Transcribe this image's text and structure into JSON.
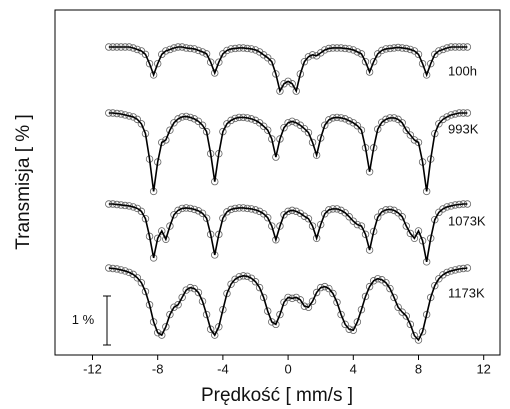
{
  "chart_data": {
    "type": "line",
    "xlabel": "Prędkość [ mm/s ]",
    "ylabel": "Transmisja [ % ]",
    "xlim": [
      -14.3,
      13
    ],
    "xticks": [
      -12,
      -8,
      -4,
      0,
      4,
      8,
      12
    ],
    "scale_bar": {
      "value": 1,
      "label": "1 %"
    },
    "x": [
      -11,
      -10.75,
      -10.5,
      -10.25,
      -10,
      -9.75,
      -9.5,
      -9.25,
      -9,
      -8.75,
      -8.5,
      -8.25,
      -8,
      -7.75,
      -7.5,
      -7.25,
      -7,
      -6.75,
      -6.5,
      -6.25,
      -6,
      -5.75,
      -5.5,
      -5.25,
      -5,
      -4.75,
      -4.5,
      -4.25,
      -4,
      -3.75,
      -3.5,
      -3.25,
      -3,
      -2.75,
      -2.5,
      -2.25,
      -2,
      -1.75,
      -1.5,
      -1.25,
      -1,
      -0.75,
      -0.5,
      -0.25,
      0,
      0.25,
      0.5,
      0.75,
      1,
      1.25,
      1.5,
      1.75,
      2,
      2.25,
      2.5,
      2.75,
      3,
      3.25,
      3.5,
      3.75,
      4,
      4.25,
      4.5,
      4.75,
      5,
      5.25,
      5.5,
      5.75,
      6,
      6.25,
      6.5,
      6.75,
      7,
      7.25,
      7.5,
      7.75,
      8,
      8.25,
      8.5,
      8.75,
      9,
      9.25,
      9.5,
      9.75,
      10,
      10.25,
      10.5,
      10.75,
      11
    ],
    "series": [
      {
        "name": "100h",
        "color": "#000000",
        "values": [
          0,
          0,
          0,
          0,
          0,
          0,
          -0.02,
          -0.05,
          -0.08,
          -0.15,
          -0.34,
          -0.57,
          -0.34,
          -0.15,
          -0.08,
          -0.05,
          -0.02,
          0,
          0,
          -0.02,
          -0.03,
          -0.04,
          -0.07,
          -0.1,
          -0.14,
          -0.31,
          -0.53,
          -0.31,
          -0.14,
          -0.07,
          -0.04,
          -0.03,
          -0.02,
          -0.02,
          -0.03,
          -0.04,
          -0.06,
          -0.1,
          -0.16,
          -0.22,
          -0.3,
          -0.55,
          -0.9,
          -0.75,
          -0.7,
          -0.75,
          -0.9,
          -0.55,
          -0.3,
          -0.2,
          -0.16,
          -0.18,
          -0.12,
          -0.06,
          -0.03,
          -0.02,
          -0.02,
          -0.02,
          -0.03,
          -0.04,
          -0.06,
          -0.1,
          -0.14,
          -0.3,
          -0.51,
          -0.3,
          -0.14,
          -0.07,
          -0.04,
          -0.03,
          -0.02,
          -0.01,
          -0.02,
          -0.03,
          -0.05,
          -0.08,
          -0.15,
          -0.34,
          -0.57,
          -0.34,
          -0.15,
          -0.08,
          -0.05,
          -0.02,
          0,
          0,
          0,
          0,
          0
        ]
      },
      {
        "name": "993K",
        "color": "#000000",
        "values": [
          0,
          0,
          -0.01,
          -0.02,
          -0.04,
          -0.06,
          -0.08,
          -0.13,
          -0.22,
          -0.42,
          -0.94,
          -1.6,
          -1.0,
          -0.6,
          -0.55,
          -0.35,
          -0.2,
          -0.12,
          -0.08,
          -0.07,
          -0.09,
          -0.12,
          -0.17,
          -0.25,
          -0.38,
          -0.83,
          -1.4,
          -0.83,
          -0.38,
          -0.22,
          -0.15,
          -0.11,
          -0.09,
          -0.09,
          -0.1,
          -0.12,
          -0.15,
          -0.2,
          -0.27,
          -0.35,
          -0.53,
          -0.9,
          -0.53,
          -0.3,
          -0.2,
          -0.17,
          -0.2,
          -0.25,
          -0.32,
          -0.4,
          -0.6,
          -0.86,
          -0.51,
          -0.25,
          -0.14,
          -0.1,
          -0.09,
          -0.1,
          -0.12,
          -0.16,
          -0.2,
          -0.26,
          -0.35,
          -0.71,
          -1.2,
          -0.71,
          -0.33,
          -0.19,
          -0.13,
          -0.1,
          -0.1,
          -0.13,
          -0.2,
          -0.35,
          -0.45,
          -0.55,
          -0.6,
          -1.0,
          -1.6,
          -0.94,
          -0.42,
          -0.22,
          -0.13,
          -0.08,
          -0.04,
          -0.02,
          0,
          0,
          0
        ]
      },
      {
        "name": "1073K",
        "color": "#000000",
        "values": [
          0,
          0,
          -0.01,
          -0.02,
          -0.03,
          -0.04,
          -0.06,
          -0.09,
          -0.15,
          -0.3,
          -0.66,
          -1.1,
          -0.7,
          -0.55,
          -0.72,
          -0.45,
          -0.22,
          -0.13,
          -0.09,
          -0.08,
          -0.09,
          -0.11,
          -0.14,
          -0.19,
          -0.29,
          -0.62,
          -1.04,
          -0.62,
          -0.29,
          -0.16,
          -0.11,
          -0.09,
          -0.08,
          -0.08,
          -0.09,
          -0.1,
          -0.12,
          -0.15,
          -0.2,
          -0.28,
          -0.45,
          -0.73,
          -0.45,
          -0.22,
          -0.15,
          -0.13,
          -0.15,
          -0.19,
          -0.25,
          -0.3,
          -0.45,
          -0.7,
          -0.42,
          -0.2,
          -0.12,
          -0.1,
          -0.1,
          -0.13,
          -0.18,
          -0.26,
          -0.35,
          -0.42,
          -0.45,
          -0.62,
          -0.94,
          -0.56,
          -0.27,
          -0.16,
          -0.12,
          -0.11,
          -0.13,
          -0.18,
          -0.26,
          -0.45,
          -0.6,
          -0.7,
          -0.55,
          -0.75,
          -1.18,
          -0.7,
          -0.32,
          -0.17,
          -0.1,
          -0.06,
          -0.04,
          -0.02,
          -0.01,
          0,
          0
        ]
      },
      {
        "name": "1173K",
        "color": "#000000",
        "values": [
          0,
          -0.01,
          -0.02,
          -0.04,
          -0.06,
          -0.09,
          -0.13,
          -0.2,
          -0.3,
          -0.48,
          -0.75,
          -1.1,
          -1.32,
          -1.37,
          -1.2,
          -0.95,
          -0.8,
          -0.75,
          -0.6,
          -0.45,
          -0.4,
          -0.42,
          -0.5,
          -0.68,
          -0.95,
          -1.25,
          -1.37,
          -1.2,
          -0.85,
          -0.52,
          -0.33,
          -0.23,
          -0.18,
          -0.16,
          -0.17,
          -0.21,
          -0.28,
          -0.4,
          -0.6,
          -0.88,
          -1.1,
          -1.15,
          -0.95,
          -0.7,
          -0.6,
          -0.62,
          -0.6,
          -0.65,
          -0.78,
          -0.8,
          -0.68,
          -0.5,
          -0.4,
          -0.38,
          -0.42,
          -0.52,
          -0.7,
          -0.95,
          -1.15,
          -1.25,
          -1.27,
          -1.1,
          -0.85,
          -0.58,
          -0.38,
          -0.26,
          -0.22,
          -0.24,
          -0.3,
          -0.42,
          -0.6,
          -0.8,
          -0.9,
          -0.98,
          -1.15,
          -1.38,
          -1.47,
          -1.3,
          -0.95,
          -0.6,
          -0.36,
          -0.22,
          -0.14,
          -0.09,
          -0.06,
          -0.04,
          -0.02,
          -0.01,
          0
        ]
      }
    ]
  }
}
